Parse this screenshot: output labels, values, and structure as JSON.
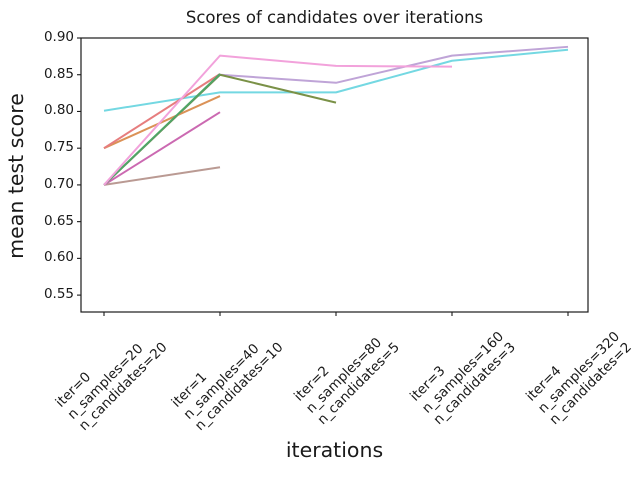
{
  "chart_data": {
    "type": "line",
    "title": "Scores of candidates over iterations",
    "xlabel": "iterations",
    "ylabel": "mean test score",
    "grid": false,
    "legend": "none",
    "ylim": [
      0.527,
      0.9
    ],
    "y_ticks": [
      0.9,
      0.85,
      0.8,
      0.75,
      0.7,
      0.65,
      0.6,
      0.55
    ],
    "x_ticks": [
      0,
      1,
      2,
      3,
      4
    ],
    "x_tick_labels": [
      "iter=0\nn_samples=20\nn_candidates=20",
      "iter=1\nn_samples=40\nn_candidates=10",
      "iter=2\nn_samples=80\nn_candidates=5",
      "iter=3\nn_samples=160\nn_candidates=3",
      "iter=4\nn_samples=320\nn_candidates=2"
    ],
    "series": [
      {
        "name": "candidate-purple",
        "color": "#BFA4D7",
        "x": [
          0,
          1,
          2,
          3,
          4
        ],
        "values": [
          0.7,
          0.85,
          0.839,
          0.876,
          0.888
        ]
      },
      {
        "name": "candidate-cyan",
        "color": "#74D8E2",
        "x": [
          0,
          1,
          2,
          3,
          4
        ],
        "values": [
          0.801,
          0.826,
          0.826,
          0.869,
          0.884
        ]
      },
      {
        "name": "candidate-olive",
        "color": "#7A9147",
        "x": [
          0,
          1,
          2
        ],
        "values": [
          0.7,
          0.85,
          0.812
        ]
      },
      {
        "name": "candidate-rosybrown",
        "color": "#BA9A93",
        "x": [
          0,
          1
        ],
        "values": [
          0.7,
          0.724
        ]
      },
      {
        "name": "candidate-orchid",
        "color": "#CB69B1",
        "x": [
          0,
          1
        ],
        "values": [
          0.7,
          0.799
        ]
      },
      {
        "name": "candidate-orange",
        "color": "#DB9257",
        "x": [
          0,
          1
        ],
        "values": [
          0.75,
          0.821
        ]
      },
      {
        "name": "candidate-red",
        "color": "#E67D7E",
        "x": [
          0,
          1
        ],
        "values": [
          0.75,
          0.851
        ]
      },
      {
        "name": "candidate-seagreen",
        "color": "#4FA567",
        "x": [
          0,
          1
        ],
        "values": [
          0.7,
          0.851
        ]
      },
      {
        "name": "candidate-pink",
        "color": "#F2A2DB",
        "x": [
          0,
          1,
          2,
          3
        ],
        "values": [
          0.7,
          0.876,
          0.862,
          0.861
        ]
      }
    ],
    "axis_color": "#1a1a1a"
  }
}
